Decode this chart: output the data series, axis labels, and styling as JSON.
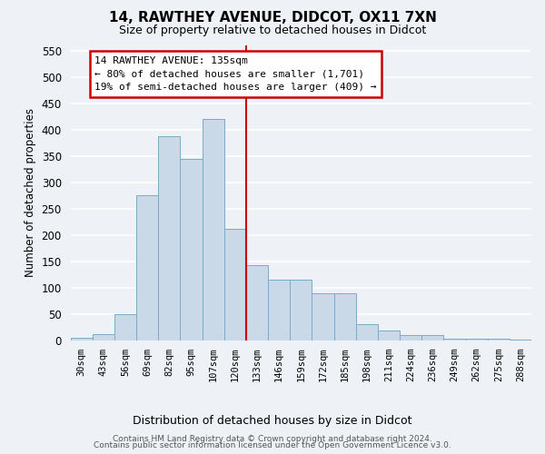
{
  "title": "14, RAWTHEY AVENUE, DIDCOT, OX11 7XN",
  "subtitle": "Size of property relative to detached houses in Didcot",
  "xlabel": "Distribution of detached houses by size in Didcot",
  "ylabel": "Number of detached properties",
  "categories": [
    "30sqm",
    "43sqm",
    "56sqm",
    "69sqm",
    "82sqm",
    "95sqm",
    "107sqm",
    "120sqm",
    "133sqm",
    "146sqm",
    "159sqm",
    "172sqm",
    "185sqm",
    "198sqm",
    "211sqm",
    "224sqm",
    "236sqm",
    "249sqm",
    "262sqm",
    "275sqm",
    "288sqm"
  ],
  "values": [
    5,
    12,
    50,
    275,
    387,
    345,
    420,
    212,
    143,
    115,
    115,
    90,
    90,
    30,
    18,
    10,
    10,
    3,
    3,
    3,
    2
  ],
  "bar_color": "#c9d9e8",
  "bar_edge_color": "#7baac8",
  "reference_line_x": 8,
  "annotation_line1": "14 RAWTHEY AVENUE: 135sqm",
  "annotation_line2": "← 80% of detached houses are smaller (1,701)",
  "annotation_line3": "19% of semi-detached houses are larger (409) →",
  "annotation_box_color": "#ffffff",
  "annotation_box_edge_color": "#cc0000",
  "ylim": [
    0,
    560
  ],
  "yticks": [
    0,
    50,
    100,
    150,
    200,
    250,
    300,
    350,
    400,
    450,
    500,
    550
  ],
  "footer1": "Contains HM Land Registry data © Crown copyright and database right 2024.",
  "footer2": "Contains public sector information licensed under the Open Government Licence v3.0.",
  "bg_color": "#eef2f7",
  "grid_color": "#ffffff",
  "title_fontsize": 11,
  "subtitle_fontsize": 9
}
